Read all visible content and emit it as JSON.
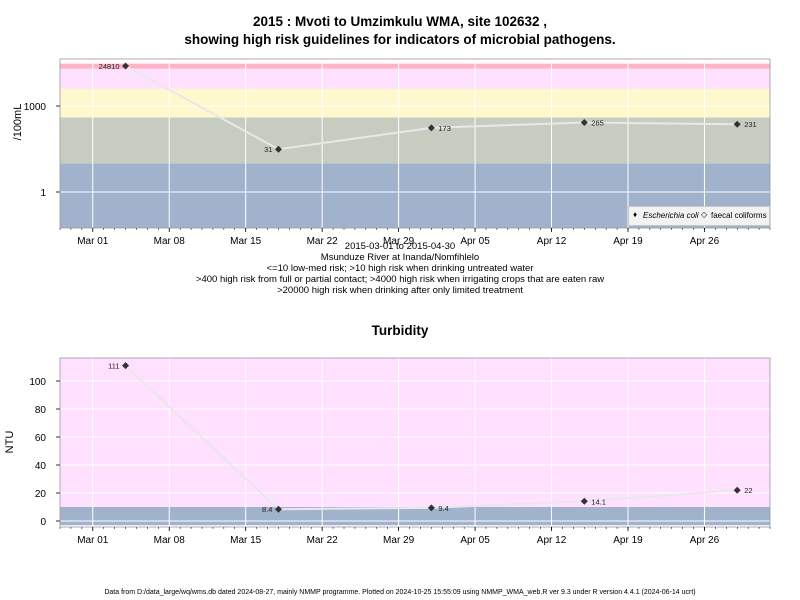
{
  "title_line1": "2015 : Mvoti to Umzimkulu WMA, site 102632 ,",
  "title_line2": "showing high risk guidelines for indicators of microbial pathogens.",
  "caption_lines": [
    "2015-03-01 to 2015-04-30",
    "Msunduze River at Inanda/Nomfihlelo",
    "<=10 low-med risk; >10 high risk when drinking untreated water",
    ">400 high risk from full or partial contact; >4000 high risk when irrigating crops that are eaten raw",
    ">20000 high risk when drinking after only limited treatment"
  ],
  "turbidity_title": "Turbidity",
  "footer": "Data from D:/data_large/wq/wms.db dated 2024-08-27, mainly NMMP programme. Plotted on 2024-10-25 15:55:09 using NMMP_WMA_web.R ver 9.3 under R version 4.4.1 (2024-06-14 ucrt)",
  "legend": {
    "ecoli_label": "Escherichia coli",
    "faecal_label": "faecal coliforms",
    "ecoli_symbol": "♦",
    "faecal_symbol": "◇"
  },
  "colors": {
    "band_red": "#ffb3c8",
    "band_pink": "#ffe0ff",
    "band_yellow": "#fff8cc",
    "band_green": "#c6ccbf",
    "band_blue": "#a1b2cc",
    "grid": "#ffffff",
    "series_line": "#e8e8e8",
    "marker": "#333333"
  },
  "chart_data": [
    {
      "type": "line",
      "scale": "log10",
      "ylabel": "/100mL",
      "xlabel": "",
      "x_ticks": [
        "Mar 01",
        "Mar 08",
        "Mar 15",
        "Mar 22",
        "Mar 29",
        "Apr 05",
        "Apr 12",
        "Apr 19",
        "Apr 26"
      ],
      "y_ticks": [
        "1",
        "1000"
      ],
      "x_range": [
        "2015-02-26",
        "2015-05-02"
      ],
      "risk_bands": [
        {
          "from": 0,
          "to": 10,
          "color": "band_blue"
        },
        {
          "from": 10,
          "to": 400,
          "color": "band_green"
        },
        {
          "from": 400,
          "to": 4000,
          "color": "band_yellow"
        },
        {
          "from": 4000,
          "to": 20000,
          "color": "band_pink"
        },
        {
          "from": 20000,
          "to": 30000,
          "color": "band_red"
        }
      ],
      "series": [
        {
          "name": "Escherichia coli",
          "points": [
            {
              "x": "2015-03-04",
              "y": 24810,
              "label": "24810"
            },
            {
              "x": "2015-03-18",
              "y": 31,
              "label": "31"
            },
            {
              "x": "2015-04-01",
              "y": 173,
              "label": "173"
            },
            {
              "x": "2015-04-15",
              "y": 265,
              "label": "265"
            },
            {
              "x": "2015-04-29",
              "y": 231,
              "label": "231"
            }
          ]
        }
      ]
    },
    {
      "type": "line",
      "title": "Turbidity",
      "ylabel": "NTU",
      "xlabel": "",
      "x_ticks": [
        "Mar 01",
        "Mar 08",
        "Mar 15",
        "Mar 22",
        "Mar 29",
        "Apr 05",
        "Apr 12",
        "Apr 19",
        "Apr 26"
      ],
      "y_ticks": [
        "0",
        "20",
        "40",
        "60",
        "80",
        "100"
      ],
      "x_range": [
        "2015-02-26",
        "2015-05-02"
      ],
      "risk_bands": [
        {
          "from": -3,
          "to": 10,
          "color": "band_blue"
        },
        {
          "from": 10,
          "to": 117,
          "color": "band_pink"
        }
      ],
      "series": [
        {
          "name": "Turbidity",
          "points": [
            {
              "x": "2015-03-04",
              "y": 111,
              "label": "111"
            },
            {
              "x": "2015-03-18",
              "y": 8.4,
              "label": "8.4"
            },
            {
              "x": "2015-04-01",
              "y": 9.4,
              "label": "9.4"
            },
            {
              "x": "2015-04-15",
              "y": 14.1,
              "label": "14.1"
            },
            {
              "x": "2015-04-29",
              "y": 22,
              "label": "22"
            }
          ]
        }
      ]
    }
  ]
}
